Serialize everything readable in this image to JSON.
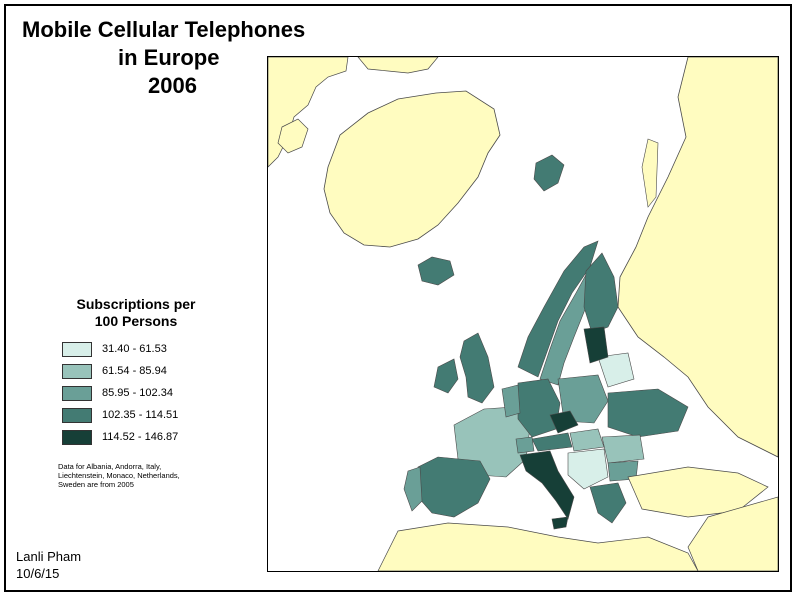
{
  "title": {
    "line1": "Mobile Cellular Telephones",
    "line2": "in Europe",
    "line3": "2006"
  },
  "legend": {
    "title_line1": "Subscriptions per",
    "title_line2": "100 Persons",
    "classes": [
      {
        "label": "31.40 - 61.53",
        "color": "#d8efe9"
      },
      {
        "label": "61.54 - 85.94",
        "color": "#98c3ba"
      },
      {
        "label": "85.95 - 102.34",
        "color": "#6a9f97"
      },
      {
        "label": "102.35 - 114.51",
        "color": "#437b73"
      },
      {
        "label": "114.52 - 146.87",
        "color": "#163f37"
      }
    ]
  },
  "note": "Data for Albania, Andorra, Italy, Liechtenstein, Monaco, Netherlands, Sweden are from 2005",
  "author": "Lanli Pham",
  "date": "10/6/15",
  "colors": {
    "land_non_europe": "#fffcc0",
    "sea": "#ffffff",
    "outline": "#4a4a4a"
  }
}
